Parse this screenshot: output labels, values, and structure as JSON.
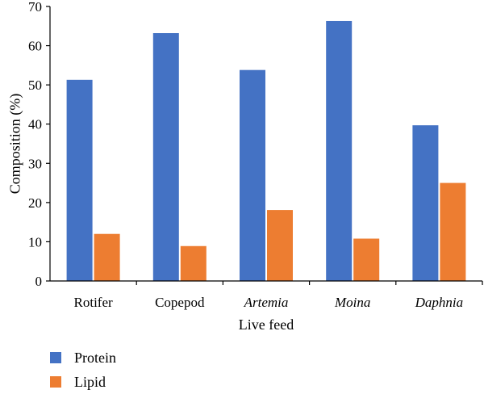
{
  "chart_data": {
    "type": "bar",
    "categories": [
      "Rotifer",
      "Copepod",
      "Artemia",
      "Moina",
      "Daphnia"
    ],
    "categories_italic": [
      false,
      false,
      true,
      true,
      true
    ],
    "series": [
      {
        "name": "Protein",
        "color": "#4472C4",
        "values": [
          51.3,
          63.2,
          53.8,
          66.3,
          39.7
        ]
      },
      {
        "name": "Lipid",
        "color": "#ED7D31",
        "values": [
          12.0,
          8.9,
          18.1,
          10.8,
          25.0
        ]
      }
    ],
    "title": "",
    "xlabel": "Live feed",
    "ylabel": "Composition (%)",
    "ylim": [
      0,
      70
    ],
    "yticks": [
      0,
      10,
      20,
      30,
      40,
      50,
      60,
      70
    ],
    "grid": false,
    "legend_position": "bottom-left"
  }
}
